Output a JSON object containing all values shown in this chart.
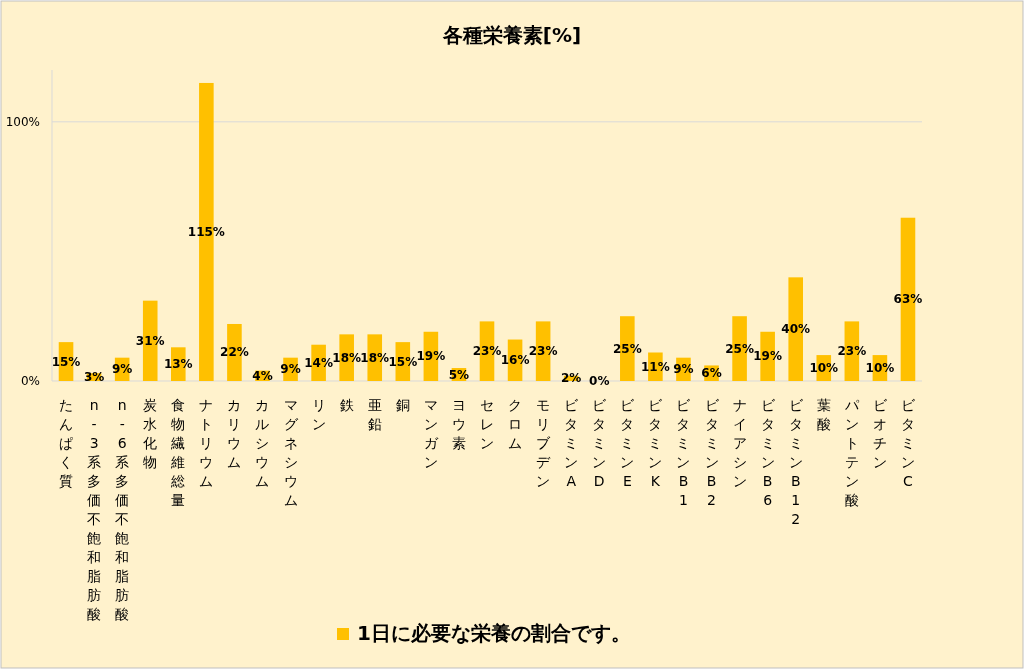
{
  "chart_data": {
    "type": "bar",
    "title": "各種栄養素[%]",
    "categories": [
      "たんぱく質",
      "n-3系多価不飽和脂肪酸",
      "n-6系多価不飽和脂肪酸",
      "炭水化物",
      "食物繊維総量",
      "ナトリウム",
      "カリウム",
      "カルシウム",
      "マグネシウム",
      "リン",
      "鉄",
      "亜鉛",
      "銅",
      "マンガン",
      "ヨウ素",
      "セレン",
      "クロム",
      "モリブデン",
      "ビタミンA",
      "ビタミンD",
      "ビタミンE",
      "ビタミンK",
      "ビタミンB1",
      "ビタミンB2",
      "ナイアシン",
      "ビタミンB6",
      "ビタミンB12",
      "葉酸",
      "パントテン酸",
      "ビオチン",
      "ビタミンC"
    ],
    "series": [
      {
        "name": "1日に必要な栄養の割合です。",
        "color": "#ffc000",
        "values": [
          15,
          3,
          9,
          31,
          13,
          115,
          22,
          4,
          9,
          14,
          18,
          18,
          15,
          19,
          5,
          23,
          16,
          23,
          2,
          0,
          25,
          11,
          9,
          6,
          25,
          19,
          40,
          10,
          23,
          10,
          63
        ],
        "value_labels": [
          "15%",
          "3%",
          "9%",
          "31%",
          "13%",
          "115%",
          "22%",
          "4%",
          "9%",
          "14%",
          "18%",
          "18%",
          "15%",
          "19%",
          "5%",
          "23%",
          "16%",
          "23%",
          "2%",
          "0%",
          "25%",
          "11%",
          "9%",
          "6%",
          "25%",
          "19%",
          "40%",
          "10%",
          "23%",
          "10%",
          "63%"
        ]
      }
    ],
    "ylim": [
      0,
      120
    ],
    "yticks": [
      {
        "value": 0,
        "label": "0%"
      },
      {
        "value": 100,
        "label": "100%"
      }
    ],
    "grid": "y",
    "legend": "bottom"
  }
}
